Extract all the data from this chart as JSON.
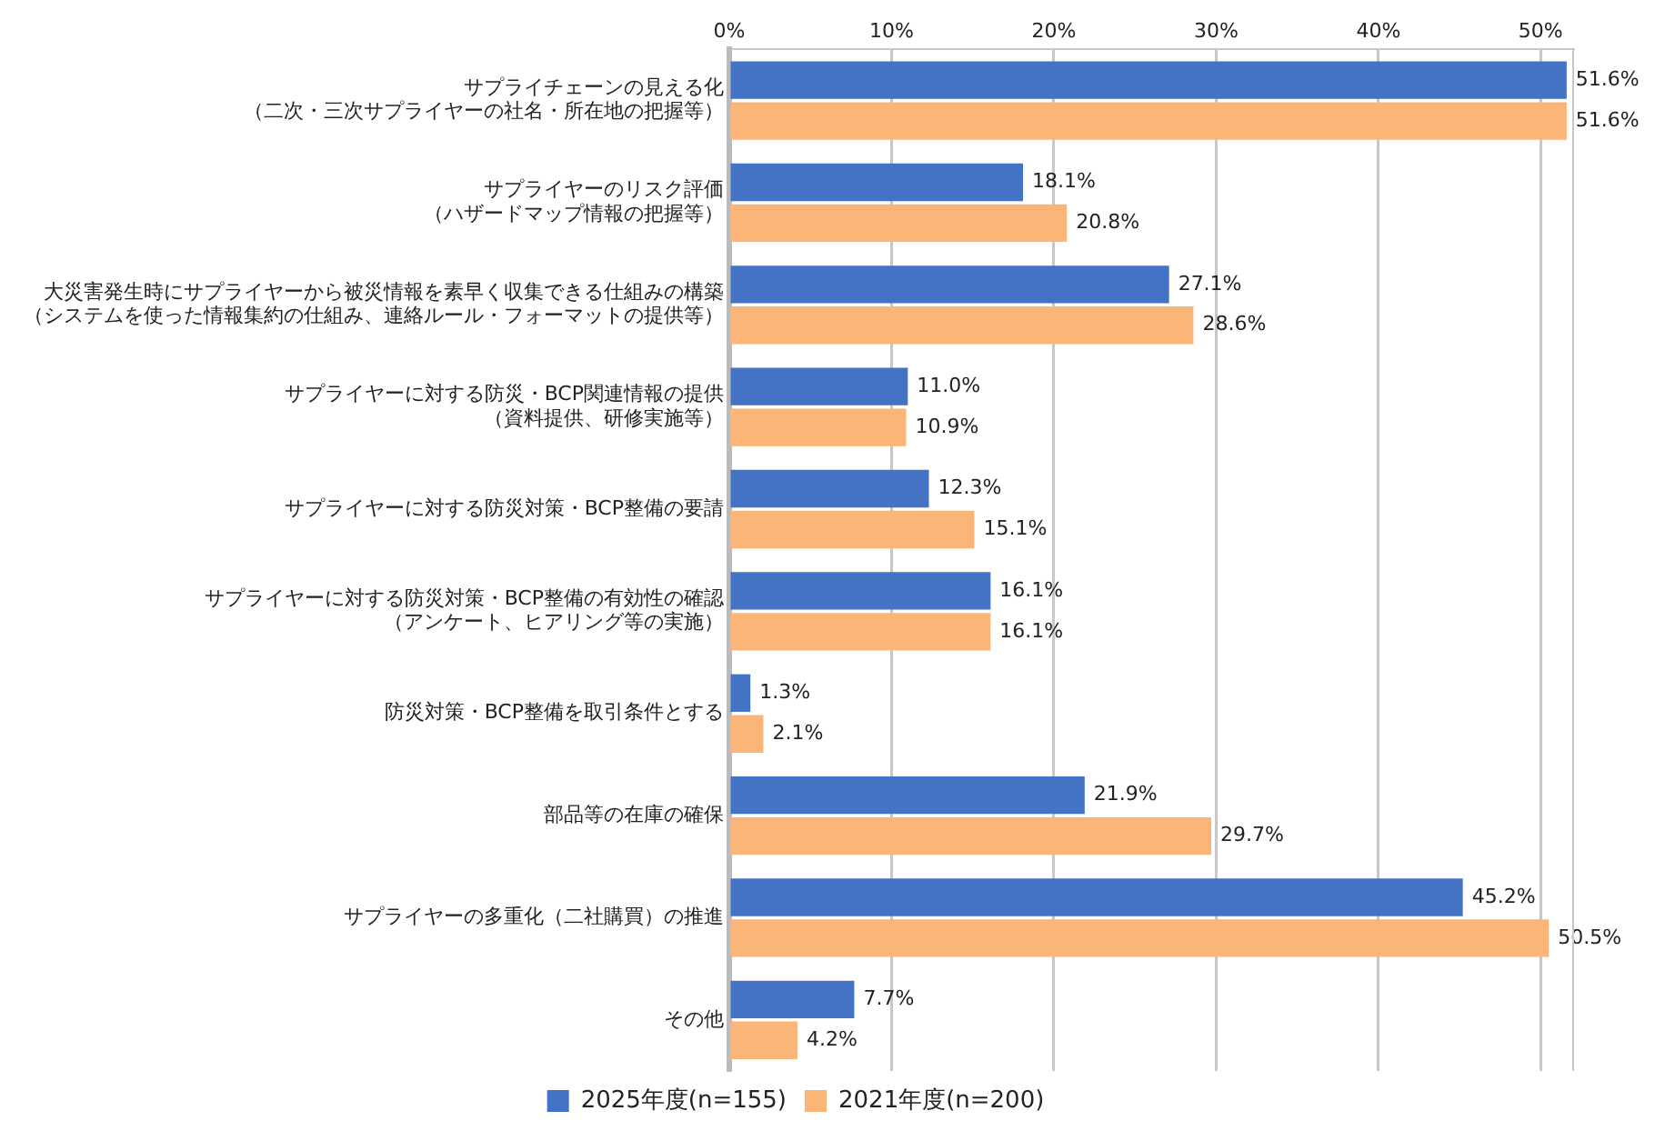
{
  "chart_data": {
    "type": "bar",
    "orientation": "horizontal",
    "categories": [
      "サプライチェーンの見える化（二次・三次サプライヤーの社名・所在地の把握等）",
      "サプライヤーのリスク評価（ハザードマップ情報の把握等）",
      "大災害発生時にサプライヤーから被災情報を素早く収集できる仕組みの構築（システムを使った情報集約の仕組み、連絡ルール・フォーマットの提供等）",
      "サプライヤーに対する防災・BCP関連情報の提供（資料提供、研修実施等）",
      "サプライヤーに対する防災対策・BCP整備の要請",
      "サプライヤーに対する防災対策・BCP整備の有効性の確認（アンケート、ヒアリング等の実施）",
      "防災対策・BCP整備を取引条件とする",
      "部品等の在庫の確保",
      "サプライヤーの多重化（二社購買）の推進",
      "その他"
    ],
    "series": [
      {
        "name": "2025年度(n=155)",
        "color": "#4472c4",
        "values": [
          51.6,
          18.1,
          27.1,
          11.0,
          12.3,
          16.1,
          1.3,
          21.9,
          45.2,
          7.7
        ],
        "value_labels": [
          "51.6%",
          "18.1%",
          "27.1%",
          "11.0%",
          "12.3%",
          "16.1%",
          "1.3%",
          "21.9%",
          "45.2%",
          "7.7%"
        ]
      },
      {
        "name": "2021年度(n=200)",
        "color": "#fbb577",
        "values": [
          51.6,
          20.8,
          28.6,
          10.9,
          15.1,
          16.1,
          2.1,
          29.7,
          50.5,
          4.2
        ],
        "value_labels": [
          "51.6%",
          "20.8%",
          "28.6%",
          "10.9%",
          "15.1%",
          "16.1%",
          "2.1%",
          "29.7%",
          "50.5%",
          "4.2%"
        ]
      }
    ],
    "xlim": [
      0,
      52
    ],
    "xticks": [
      {
        "value": 0,
        "label": "0%"
      },
      {
        "value": 10,
        "label": "10%"
      },
      {
        "value": 20,
        "label": "20%"
      },
      {
        "value": 30,
        "label": "30%"
      },
      {
        "value": 40,
        "label": "40%"
      },
      {
        "value": 50,
        "label": "50%"
      }
    ],
    "grid": "x",
    "legend": "bottom"
  }
}
